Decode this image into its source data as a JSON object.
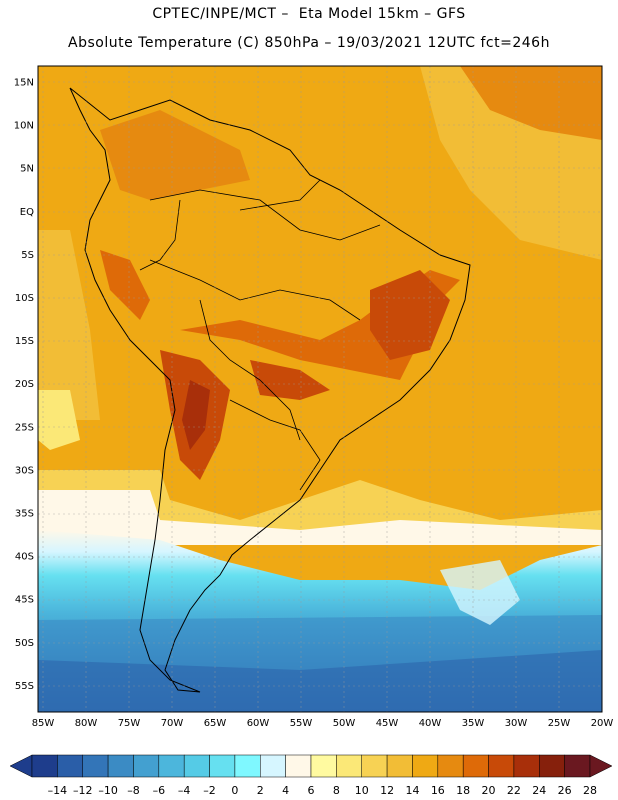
{
  "header": {
    "line1": "CPTEC/INPE/MCT –  Eta Model 15km – GFS",
    "line2": "Absolute Temperature (C) 850hPa – 19/03/2021 12UTC fct=246h"
  },
  "map": {
    "lat_labels": [
      "15N",
      "10N",
      "5N",
      "EQ",
      "5S",
      "10S",
      "15S",
      "20S",
      "25S",
      "30S",
      "35S",
      "40S",
      "45S",
      "50S",
      "55S"
    ],
    "lon_labels": [
      "85W",
      "80W",
      "75W",
      "70W",
      "65W",
      "60W",
      "55W",
      "50W",
      "45W",
      "40W",
      "35W",
      "30W",
      "25W",
      "20W"
    ]
  },
  "colorbar": {
    "colors": [
      "#1e3d8c",
      "#2a5ea8",
      "#3375b8",
      "#3b8bc4",
      "#43a0d0",
      "#4cb6dc",
      "#55cbe6",
      "#66e0f0",
      "#7ff8ff",
      "#d6f6ff",
      "#fff8e8",
      "#fffaa0",
      "#fbe877",
      "#f7d254",
      "#f2bd36",
      "#efa914",
      "#e68a10",
      "#de6a08",
      "#c84a08",
      "#a82f0a",
      "#86200c",
      "#6a1820"
    ],
    "labels": [
      "–14",
      "–12",
      "–10",
      "–8",
      "–6",
      "–4",
      "–2",
      "0",
      "2",
      "4",
      "6",
      "8",
      "10",
      "12",
      "14",
      "16",
      "18",
      "20",
      "22",
      "24",
      "26",
      "28"
    ]
  }
}
